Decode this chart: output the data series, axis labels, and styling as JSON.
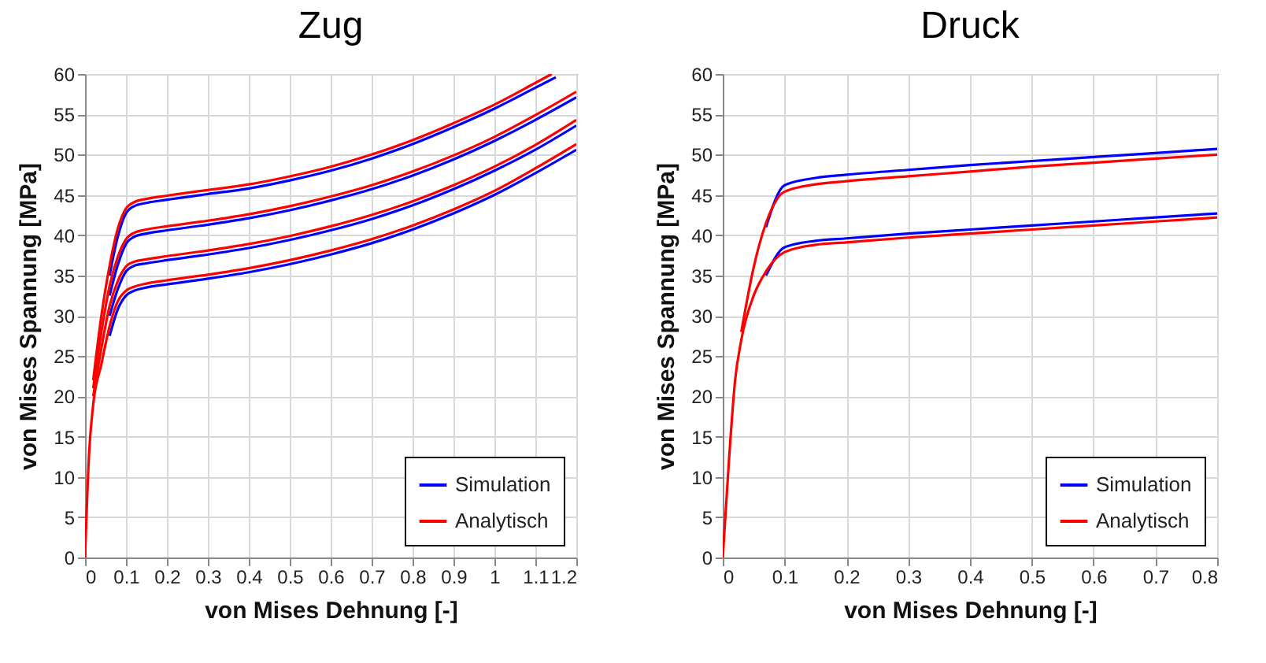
{
  "chart_data": [
    {
      "type": "line",
      "title": "Zug",
      "xlabel": "von Mises Dehnung [-]",
      "ylabel": "von Mises Spannung [MPa]",
      "xlim": [
        0,
        1.2
      ],
      "ylim": [
        0,
        60
      ],
      "xticks": [
        0,
        0.1,
        0.2,
        0.3,
        0.4,
        0.5,
        0.6,
        0.7,
        0.8,
        0.9,
        1,
        1.1,
        1.2
      ],
      "yticks": [
        0,
        5,
        10,
        15,
        20,
        25,
        30,
        35,
        40,
        45,
        50,
        55,
        60
      ],
      "grid": true,
      "legend": "bottom right",
      "series": [
        {
          "name": "Simulation",
          "color": "#0000ff",
          "x": [
            0.06,
            0.08,
            0.1,
            0.12,
            0.15,
            0.2,
            0.3,
            0.4,
            0.5,
            0.6,
            0.7,
            0.8,
            0.9,
            1,
            1.1,
            1.15
          ],
          "values": [
            35,
            39.8,
            42.7,
            43.6,
            44,
            44.4,
            45.1,
            45.8,
            46.8,
            48,
            49.5,
            51.3,
            53.4,
            55.7,
            58.3,
            59.6
          ]
        },
        {
          "color": "#0000ff",
          "x": [
            0.06,
            0.08,
            0.1,
            0.12,
            0.15,
            0.2,
            0.3,
            0.4,
            0.5,
            0.6,
            0.7,
            0.8,
            0.9,
            1,
            1.1,
            1.2
          ],
          "values": [
            32.5,
            36.3,
            38.9,
            39.8,
            40.2,
            40.6,
            41.3,
            42.1,
            43.1,
            44.3,
            45.7,
            47.4,
            49.4,
            51.7,
            54.3,
            57.1
          ]
        },
        {
          "color": "#0000ff",
          "x": [
            0.06,
            0.08,
            0.1,
            0.12,
            0.15,
            0.2,
            0.3,
            0.4,
            0.5,
            0.6,
            0.7,
            0.8,
            0.9,
            1,
            1.1,
            1.2
          ],
          "values": [
            30,
            33.3,
            35.5,
            36.2,
            36.5,
            36.9,
            37.6,
            38.4,
            39.4,
            40.6,
            42,
            43.7,
            45.7,
            48,
            50.6,
            53.6
          ]
        },
        {
          "color": "#0000ff",
          "x": [
            0.06,
            0.08,
            0.1,
            0.12,
            0.15,
            0.2,
            0.3,
            0.4,
            0.5,
            0.6,
            0.7,
            0.8,
            0.9,
            1,
            1.1,
            1.2
          ],
          "values": [
            27.5,
            30.8,
            32.5,
            33.1,
            33.5,
            33.9,
            34.6,
            35.4,
            36.4,
            37.6,
            39,
            40.7,
            42.7,
            45,
            47.7,
            50.6
          ]
        },
        {
          "name": "Analytisch",
          "color": "#ff0000",
          "x": [
            0.02,
            0.04,
            0.06,
            0.08,
            0.1,
            0.12,
            0.15,
            0.2,
            0.3,
            0.4,
            0.5,
            0.6,
            0.7,
            0.8,
            0.9,
            1,
            1.1,
            1.14
          ],
          "values": [
            22,
            30,
            36.2,
            40.8,
            43.3,
            44.1,
            44.5,
            44.9,
            45.6,
            46.3,
            47.3,
            48.5,
            50,
            51.8,
            53.9,
            56.2,
            58.9,
            60
          ]
        },
        {
          "color": "#ff0000",
          "x": [
            0.02,
            0.04,
            0.06,
            0.08,
            0.1,
            0.12,
            0.15,
            0.2,
            0.3,
            0.4,
            0.5,
            0.6,
            0.7,
            0.8,
            0.9,
            1,
            1.1,
            1.2
          ],
          "values": [
            21,
            28,
            33.7,
            37.3,
            39.5,
            40.3,
            40.7,
            41.1,
            41.8,
            42.6,
            43.6,
            44.8,
            46.2,
            47.9,
            49.9,
            52.2,
            54.9,
            57.8
          ]
        },
        {
          "color": "#ff0000",
          "x": [
            0.02,
            0.04,
            0.06,
            0.08,
            0.1,
            0.12,
            0.15,
            0.2,
            0.3,
            0.4,
            0.5,
            0.6,
            0.7,
            0.8,
            0.9,
            1,
            1.1,
            1.2
          ],
          "values": [
            20,
            26,
            31.2,
            34.3,
            36.1,
            36.7,
            37,
            37.4,
            38.1,
            38.9,
            39.9,
            41.1,
            42.5,
            44.2,
            46.2,
            48.5,
            51.2,
            54.3
          ]
        },
        {
          "color": "#ff0000",
          "x": [
            0,
            0.01,
            0.02,
            0.04,
            0.06,
            0.08,
            0.1,
            0.12,
            0.15,
            0.2,
            0.3,
            0.4,
            0.5,
            0.6,
            0.7,
            0.8,
            0.9,
            1,
            1.1,
            1.2
          ],
          "values": [
            0,
            13,
            19,
            24,
            28.7,
            31.8,
            33.1,
            33.6,
            34,
            34.4,
            35.1,
            35.9,
            36.9,
            38.1,
            39.5,
            41.2,
            43.2,
            45.5,
            48.3,
            51.3
          ]
        }
      ]
    },
    {
      "type": "line",
      "title": "Druck",
      "xlabel": "von Mises Dehnung [-]",
      "ylabel": "von Mises Spannung [MPa]",
      "xlim": [
        0,
        0.8
      ],
      "ylim": [
        0,
        60
      ],
      "xticks": [
        0,
        0.1,
        0.2,
        0.3,
        0.4,
        0.5,
        0.6,
        0.7,
        0.8
      ],
      "yticks": [
        0,
        5,
        10,
        15,
        20,
        25,
        30,
        35,
        40,
        45,
        50,
        55,
        60
      ],
      "grid": true,
      "legend": "bottom right",
      "series": [
        {
          "name": "Simulation",
          "color": "#0000ff",
          "x": [
            0.07,
            0.1,
            0.15,
            0.2,
            0.3,
            0.4,
            0.5,
            0.6,
            0.7,
            0.8
          ],
          "values": [
            41,
            46.2,
            47.1,
            47.5,
            48.1,
            48.7,
            49.2,
            49.7,
            50.2,
            50.7
          ]
        },
        {
          "color": "#0000ff",
          "x": [
            0.07,
            0.1,
            0.15,
            0.2,
            0.3,
            0.4,
            0.5,
            0.6,
            0.7,
            0.8
          ],
          "values": [
            35,
            38.5,
            39.3,
            39.6,
            40.2,
            40.7,
            41.2,
            41.7,
            42.2,
            42.7
          ]
        },
        {
          "name": "Analytisch",
          "color": "#ff0000",
          "x": [
            0.03,
            0.05,
            0.07,
            0.1,
            0.15,
            0.2,
            0.3,
            0.4,
            0.5,
            0.6,
            0.7,
            0.8
          ],
          "values": [
            28,
            36,
            41.5,
            45.4,
            46.3,
            46.7,
            47.3,
            47.9,
            48.5,
            49,
            49.5,
            50
          ]
        },
        {
          "color": "#ff0000",
          "x": [
            0,
            0.01,
            0.02,
            0.03,
            0.05,
            0.07,
            0.1,
            0.15,
            0.2,
            0.3,
            0.4,
            0.5,
            0.6,
            0.7,
            0.8
          ],
          "values": [
            0,
            12,
            22,
            27,
            32.5,
            35.5,
            37.9,
            38.8,
            39.1,
            39.7,
            40.2,
            40.7,
            41.2,
            41.7,
            42.2
          ]
        }
      ]
    }
  ]
}
